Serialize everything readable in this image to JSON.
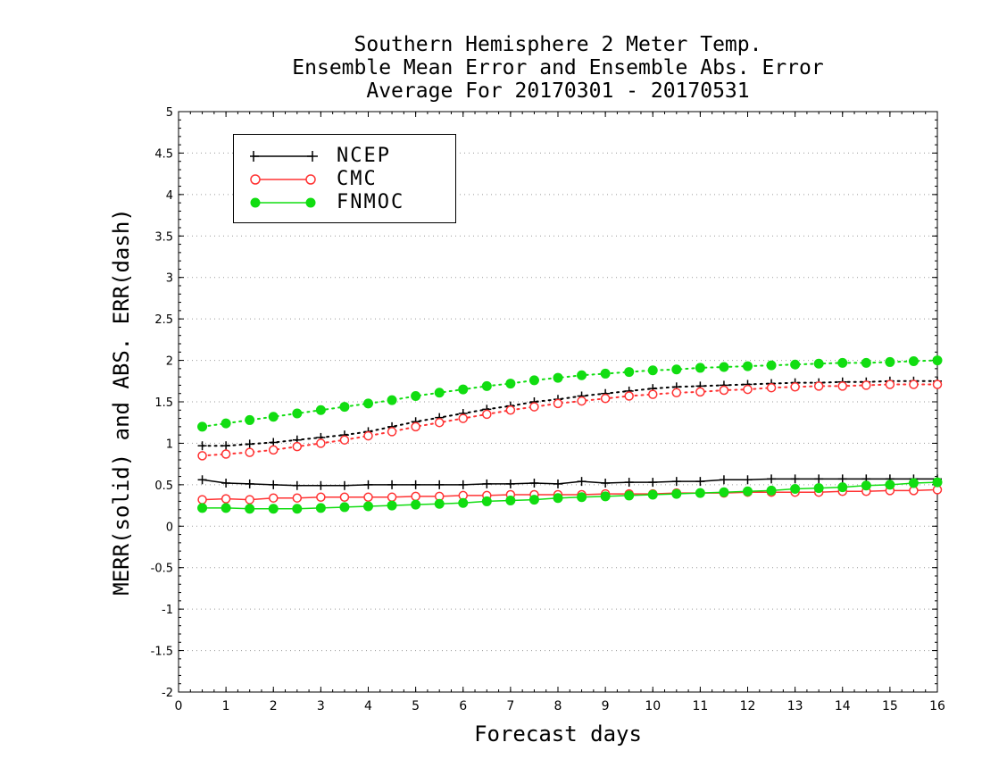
{
  "chart_data": {
    "type": "line",
    "title": [
      "Southern Hemisphere 2 Meter Temp.",
      "Ensemble Mean Error and Ensemble Abs. Error",
      "Average For 20170301 - 20170531"
    ],
    "xlabel": "Forecast days",
    "ylabel": "MERR(solid) and ABS. ERR(dash)",
    "xlim": [
      0,
      16
    ],
    "ylim": [
      -2,
      5
    ],
    "xticks": [
      0,
      1,
      2,
      3,
      4,
      5,
      6,
      7,
      8,
      9,
      10,
      11,
      12,
      13,
      14,
      15,
      16
    ],
    "yticks": [
      -2,
      -1.5,
      -1,
      -0.5,
      0,
      0.5,
      1,
      1.5,
      2,
      2.5,
      3,
      3.5,
      4,
      4.5,
      5
    ],
    "ytick_labels": [
      "-2",
      "-1.5",
      "-1",
      "-0.5",
      "0",
      "0.5",
      "1",
      "1.5",
      "2",
      "2.5",
      "3",
      "3.5",
      "4",
      "4.5",
      "5"
    ],
    "grid": true,
    "legend_position": "top-left",
    "x": [
      0.5,
      1,
      1.5,
      2,
      2.5,
      3,
      3.5,
      4,
      4.5,
      5,
      5.5,
      6,
      6.5,
      7,
      7.5,
      8,
      8.5,
      9,
      9.5,
      10,
      10.5,
      11,
      11.5,
      12,
      12.5,
      13,
      13.5,
      14,
      14.5,
      15,
      15.5,
      16
    ],
    "series": [
      {
        "name": "NCEP",
        "color": "#000000",
        "marker": "plus",
        "merr": [
          0.56,
          0.52,
          0.51,
          0.5,
          0.49,
          0.49,
          0.49,
          0.5,
          0.5,
          0.5,
          0.5,
          0.5,
          0.51,
          0.51,
          0.52,
          0.51,
          0.54,
          0.52,
          0.53,
          0.53,
          0.54,
          0.54,
          0.56,
          0.56,
          0.57,
          0.57,
          0.57,
          0.57,
          0.57,
          0.57,
          0.57,
          0.57
        ],
        "abs_err": [
          0.97,
          0.97,
          0.99,
          1.01,
          1.04,
          1.07,
          1.1,
          1.14,
          1.2,
          1.26,
          1.31,
          1.36,
          1.41,
          1.45,
          1.5,
          1.53,
          1.57,
          1.6,
          1.63,
          1.66,
          1.68,
          1.69,
          1.7,
          1.71,
          1.72,
          1.73,
          1.73,
          1.74,
          1.74,
          1.75,
          1.75,
          1.75
        ]
      },
      {
        "name": "CMC",
        "color": "#ff3333",
        "marker": "open-circle",
        "merr": [
          0.32,
          0.33,
          0.32,
          0.34,
          0.34,
          0.35,
          0.35,
          0.35,
          0.35,
          0.36,
          0.36,
          0.37,
          0.37,
          0.38,
          0.38,
          0.38,
          0.38,
          0.39,
          0.39,
          0.39,
          0.4,
          0.4,
          0.4,
          0.41,
          0.41,
          0.41,
          0.41,
          0.42,
          0.42,
          0.43,
          0.43,
          0.44
        ],
        "abs_err": [
          0.85,
          0.87,
          0.89,
          0.92,
          0.96,
          1.0,
          1.04,
          1.09,
          1.14,
          1.2,
          1.25,
          1.3,
          1.35,
          1.4,
          1.44,
          1.48,
          1.51,
          1.54,
          1.57,
          1.59,
          1.61,
          1.62,
          1.64,
          1.65,
          1.67,
          1.68,
          1.69,
          1.69,
          1.7,
          1.71,
          1.71,
          1.71
        ]
      },
      {
        "name": "FNMOC",
        "color": "#11dd11",
        "marker": "filled-circle",
        "merr": [
          0.22,
          0.22,
          0.21,
          0.21,
          0.21,
          0.22,
          0.23,
          0.24,
          0.25,
          0.26,
          0.27,
          0.28,
          0.3,
          0.31,
          0.32,
          0.34,
          0.35,
          0.36,
          0.37,
          0.38,
          0.39,
          0.4,
          0.41,
          0.42,
          0.43,
          0.45,
          0.46,
          0.47,
          0.49,
          0.5,
          0.52,
          0.53
        ],
        "abs_err": [
          1.2,
          1.24,
          1.28,
          1.32,
          1.36,
          1.4,
          1.44,
          1.48,
          1.52,
          1.57,
          1.61,
          1.65,
          1.69,
          1.72,
          1.76,
          1.79,
          1.82,
          1.84,
          1.86,
          1.88,
          1.89,
          1.91,
          1.92,
          1.93,
          1.94,
          1.95,
          1.96,
          1.97,
          1.97,
          1.98,
          1.99,
          2.0
        ]
      }
    ]
  }
}
